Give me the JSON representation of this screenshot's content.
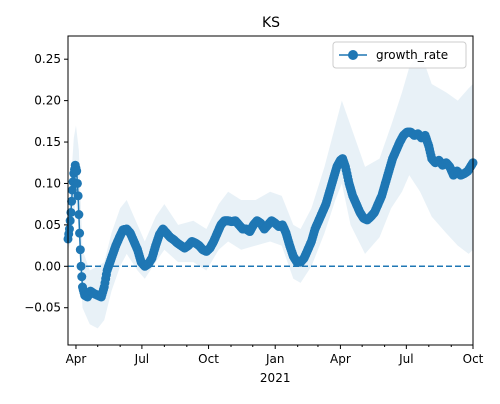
{
  "chart_data": {
    "type": "line",
    "title": "KS",
    "xlabel": "",
    "ylabel": "",
    "x_range": [
      "2020-03-21",
      "2021-10-01"
    ],
    "ylim": [
      -0.095,
      0.278
    ],
    "x_ticks": [
      {
        "date": "2020-04-01",
        "label": "Apr"
      },
      {
        "date": "2020-07-01",
        "label": "Jul"
      },
      {
        "date": "2020-10-01",
        "label": "Oct"
      },
      {
        "date": "2021-01-01",
        "label": "Jan"
      },
      {
        "date": "2021-04-01",
        "label": "Apr"
      },
      {
        "date": "2021-07-01",
        "label": "Jul"
      },
      {
        "date": "2021-10-01",
        "label": "Oct"
      }
    ],
    "x_minor_ticks": [
      "2020-05-01",
      "2020-06-01",
      "2020-08-01",
      "2020-09-01",
      "2020-11-01",
      "2020-12-01",
      "2021-02-01",
      "2021-03-01",
      "2021-05-01",
      "2021-06-01",
      "2021-08-01",
      "2021-09-01"
    ],
    "x_secondary_label": {
      "date": "2021-01-01",
      "label": "2021"
    },
    "y_ticks": [
      -0.05,
      0.0,
      0.05,
      0.1,
      0.15,
      0.2,
      0.25
    ],
    "y_tick_labels": [
      "−0.05",
      "0.00",
      "0.05",
      "0.10",
      "0.15",
      "0.20",
      "0.25"
    ],
    "reference_line": {
      "y": 0.0,
      "style": "dashed",
      "color": "#1f77b4"
    },
    "legend": {
      "placement": "top-right",
      "entries": [
        "growth_rate"
      ]
    },
    "grid": false,
    "colors": {
      "series": "#1f77b4",
      "band": "#1f77b4",
      "axes": "#000000"
    },
    "series": [
      {
        "name": "growth_rate",
        "points": [
          [
            "2020-03-21",
            0.033
          ],
          [
            "2020-03-23",
            0.045
          ],
          [
            "2020-03-25",
            0.065
          ],
          [
            "2020-03-27",
            0.092
          ],
          [
            "2020-03-29",
            0.112
          ],
          [
            "2020-03-31",
            0.122
          ],
          [
            "2020-04-02",
            0.115
          ],
          [
            "2020-04-04",
            0.085
          ],
          [
            "2020-04-06",
            0.04
          ],
          [
            "2020-04-08",
            0.0
          ],
          [
            "2020-04-10",
            -0.025
          ],
          [
            "2020-04-13",
            -0.035
          ],
          [
            "2020-04-17",
            -0.037
          ],
          [
            "2020-04-21",
            -0.03
          ],
          [
            "2020-04-26",
            -0.033
          ],
          [
            "2020-05-01",
            -0.035
          ],
          [
            "2020-05-06",
            -0.037
          ],
          [
            "2020-05-10",
            -0.025
          ],
          [
            "2020-05-14",
            -0.005
          ],
          [
            "2020-05-18",
            0.005
          ],
          [
            "2020-05-22",
            0.015
          ],
          [
            "2020-05-26",
            0.025
          ],
          [
            "2020-05-31",
            0.035
          ],
          [
            "2020-06-05",
            0.044
          ],
          [
            "2020-06-10",
            0.045
          ],
          [
            "2020-06-15",
            0.04
          ],
          [
            "2020-06-20",
            0.03
          ],
          [
            "2020-06-25",
            0.02
          ],
          [
            "2020-06-30",
            0.005
          ],
          [
            "2020-07-05",
            0.0
          ],
          [
            "2020-07-10",
            0.003
          ],
          [
            "2020-07-15",
            0.01
          ],
          [
            "2020-07-20",
            0.025
          ],
          [
            "2020-07-25",
            0.038
          ],
          [
            "2020-07-30",
            0.045
          ],
          [
            "2020-08-04",
            0.04
          ],
          [
            "2020-08-09",
            0.035
          ],
          [
            "2020-08-14",
            0.032
          ],
          [
            "2020-08-19",
            0.028
          ],
          [
            "2020-08-24",
            0.025
          ],
          [
            "2020-08-29",
            0.022
          ],
          [
            "2020-09-03",
            0.025
          ],
          [
            "2020-09-08",
            0.03
          ],
          [
            "2020-09-13",
            0.028
          ],
          [
            "2020-09-18",
            0.025
          ],
          [
            "2020-09-23",
            0.02
          ],
          [
            "2020-09-28",
            0.018
          ],
          [
            "2020-10-03",
            0.022
          ],
          [
            "2020-10-08",
            0.03
          ],
          [
            "2020-10-13",
            0.04
          ],
          [
            "2020-10-18",
            0.05
          ],
          [
            "2020-10-23",
            0.055
          ],
          [
            "2020-10-28",
            0.055
          ],
          [
            "2020-11-02",
            0.054
          ],
          [
            "2020-11-07",
            0.055
          ],
          [
            "2020-11-12",
            0.05
          ],
          [
            "2020-11-17",
            0.045
          ],
          [
            "2020-11-22",
            0.045
          ],
          [
            "2020-11-27",
            0.042
          ],
          [
            "2020-12-02",
            0.05
          ],
          [
            "2020-12-07",
            0.055
          ],
          [
            "2020-12-12",
            0.052
          ],
          [
            "2020-12-17",
            0.045
          ],
          [
            "2020-12-22",
            0.05
          ],
          [
            "2020-12-27",
            0.055
          ],
          [
            "2021-01-01",
            0.052
          ],
          [
            "2021-01-06",
            0.048
          ],
          [
            "2021-01-11",
            0.05
          ],
          [
            "2021-01-16",
            0.04
          ],
          [
            "2021-01-21",
            0.025
          ],
          [
            "2021-01-26",
            0.012
          ],
          [
            "2021-01-31",
            0.005
          ],
          [
            "2021-02-05",
            0.005
          ],
          [
            "2021-02-10",
            0.01
          ],
          [
            "2021-02-15",
            0.02
          ],
          [
            "2021-02-20",
            0.03
          ],
          [
            "2021-02-25",
            0.045
          ],
          [
            "2021-03-02",
            0.055
          ],
          [
            "2021-03-07",
            0.065
          ],
          [
            "2021-03-12",
            0.075
          ],
          [
            "2021-03-17",
            0.09
          ],
          [
            "2021-03-22",
            0.105
          ],
          [
            "2021-03-27",
            0.12
          ],
          [
            "2021-04-01",
            0.128
          ],
          [
            "2021-04-04",
            0.13
          ],
          [
            "2021-04-08",
            0.12
          ],
          [
            "2021-04-13",
            0.1
          ],
          [
            "2021-04-18",
            0.085
          ],
          [
            "2021-04-23",
            0.075
          ],
          [
            "2021-04-28",
            0.065
          ],
          [
            "2021-05-03",
            0.058
          ],
          [
            "2021-05-08",
            0.056
          ],
          [
            "2021-05-13",
            0.06
          ],
          [
            "2021-05-18",
            0.065
          ],
          [
            "2021-05-23",
            0.075
          ],
          [
            "2021-05-28",
            0.085
          ],
          [
            "2021-06-02",
            0.1
          ],
          [
            "2021-06-07",
            0.115
          ],
          [
            "2021-06-12",
            0.13
          ],
          [
            "2021-06-17",
            0.14
          ],
          [
            "2021-06-22",
            0.15
          ],
          [
            "2021-06-27",
            0.158
          ],
          [
            "2021-07-02",
            0.162
          ],
          [
            "2021-07-07",
            0.162
          ],
          [
            "2021-07-12",
            0.158
          ],
          [
            "2021-07-17",
            0.16
          ],
          [
            "2021-07-22",
            0.155
          ],
          [
            "2021-07-27",
            0.158
          ],
          [
            "2021-08-01",
            0.145
          ],
          [
            "2021-08-05",
            0.13
          ],
          [
            "2021-08-10",
            0.125
          ],
          [
            "2021-08-15",
            0.128
          ],
          [
            "2021-08-20",
            0.122
          ],
          [
            "2021-08-25",
            0.125
          ],
          [
            "2021-08-30",
            0.12
          ],
          [
            "2021-09-04",
            0.11
          ],
          [
            "2021-09-09",
            0.115
          ],
          [
            "2021-09-14",
            0.11
          ],
          [
            "2021-09-19",
            0.112
          ],
          [
            "2021-09-24",
            0.115
          ],
          [
            "2021-10-01",
            0.125
          ]
        ],
        "band": [
          [
            "2020-03-21",
            0.02,
            0.05
          ],
          [
            "2020-03-25",
            0.03,
            0.1
          ],
          [
            "2020-03-29",
            0.06,
            0.155
          ],
          [
            "2020-04-01",
            0.08,
            0.17
          ],
          [
            "2020-04-05",
            0.04,
            0.14
          ],
          [
            "2020-04-10",
            -0.05,
            0.02
          ],
          [
            "2020-04-20",
            -0.07,
            -0.005
          ],
          [
            "2020-05-01",
            -0.075,
            0.0
          ],
          [
            "2020-05-10",
            -0.065,
            0.005
          ],
          [
            "2020-05-20",
            -0.03,
            0.04
          ],
          [
            "2020-06-01",
            0.0,
            0.07
          ],
          [
            "2020-06-10",
            0.015,
            0.08
          ],
          [
            "2020-06-25",
            -0.005,
            0.05
          ],
          [
            "2020-07-05",
            -0.015,
            0.03
          ],
          [
            "2020-07-20",
            0.005,
            0.06
          ],
          [
            "2020-08-01",
            0.02,
            0.075
          ],
          [
            "2020-08-20",
            0.005,
            0.05
          ],
          [
            "2020-09-10",
            0.005,
            0.055
          ],
          [
            "2020-09-28",
            -0.005,
            0.045
          ],
          [
            "2020-10-15",
            0.02,
            0.075
          ],
          [
            "2020-10-28",
            0.03,
            0.09
          ],
          [
            "2020-11-15",
            0.02,
            0.08
          ],
          [
            "2020-12-05",
            0.025,
            0.08
          ],
          [
            "2020-12-25",
            0.03,
            0.09
          ],
          [
            "2021-01-10",
            0.025,
            0.085
          ],
          [
            "2021-01-26",
            -0.015,
            0.05
          ],
          [
            "2021-02-05",
            -0.02,
            0.045
          ],
          [
            "2021-02-20",
            0.0,
            0.07
          ],
          [
            "2021-03-10",
            0.04,
            0.12
          ],
          [
            "2021-03-25",
            0.08,
            0.17
          ],
          [
            "2021-04-03",
            0.1,
            0.2
          ],
          [
            "2021-04-15",
            0.05,
            0.17
          ],
          [
            "2021-05-05",
            0.015,
            0.12
          ],
          [
            "2021-05-25",
            0.035,
            0.13
          ],
          [
            "2021-06-10",
            0.07,
            0.17
          ],
          [
            "2021-06-25",
            0.09,
            0.21
          ],
          [
            "2021-07-05",
            0.11,
            0.24
          ],
          [
            "2021-07-20",
            0.09,
            0.26
          ],
          [
            "2021-08-05",
            0.06,
            0.22
          ],
          [
            "2021-08-25",
            0.04,
            0.21
          ],
          [
            "2021-09-10",
            0.025,
            0.2
          ],
          [
            "2021-09-25",
            0.015,
            0.215
          ],
          [
            "2021-10-01",
            0.02,
            0.22
          ]
        ]
      }
    ]
  }
}
